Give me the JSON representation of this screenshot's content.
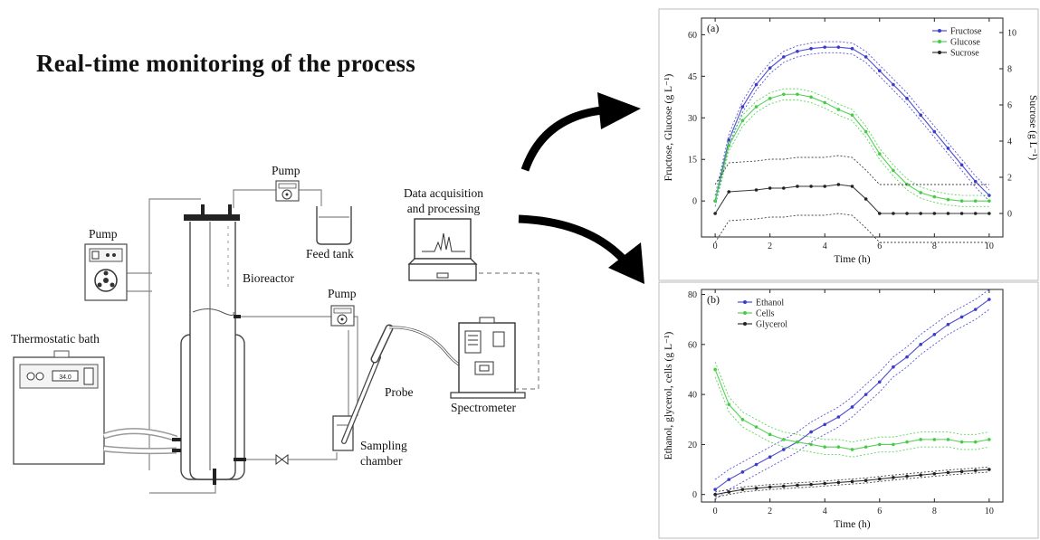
{
  "title": "Real-time monitoring of the process",
  "labels": {
    "pump_left": "Pump",
    "pump_top": "Pump",
    "pump_mid": "Pump",
    "feed_tank": "Feed tank",
    "bioreactor": "Bioreactor",
    "thermostatic_bath": "Thermostatic bath",
    "data_acq_line1": "Data acquisition",
    "data_acq_line2": "and processing",
    "probe": "Probe",
    "spectrometer": "Spectrometer",
    "sampling_line1": "Sampling",
    "sampling_line2": "chamber",
    "bath_display": "34.0"
  },
  "colors": {
    "fructose": "#3a3acc",
    "glucose": "#44cc44",
    "sucrose": "#222222",
    "ethanol": "#3a3acc",
    "cells": "#44cc44",
    "glycerol": "#222222"
  },
  "chart_data": [
    {
      "type": "line",
      "panel": "(a)",
      "xlabel": "Time (h)",
      "ylabel": "Fructose, Glucose (g L⁻¹)",
      "y2label": "Sucrose (g L⁻¹)",
      "xlim": [
        -0.5,
        10.5
      ],
      "ylim": [
        -13,
        66
      ],
      "y2lim": [
        -1.3,
        10.8
      ],
      "xticks": [
        0,
        2,
        4,
        6,
        8,
        10
      ],
      "yticks": [
        0,
        15,
        30,
        45,
        60
      ],
      "y2ticks": [
        0,
        2,
        4,
        6,
        8,
        10
      ],
      "legend_position": "top-right",
      "series": [
        {
          "name": "Fructose",
          "axis": "left",
          "x": [
            0,
            0.5,
            1,
            1.5,
            2,
            2.5,
            3,
            3.5,
            4,
            4.5,
            5,
            5.5,
            6,
            6.5,
            7,
            7.5,
            8,
            8.5,
            9,
            9.5,
            10
          ],
          "values": [
            0,
            22,
            34,
            42,
            48,
            52,
            54,
            55,
            55.5,
            55.5,
            55,
            52,
            47,
            42,
            37,
            31,
            25,
            19,
            13,
            7,
            2
          ],
          "band": 2.0
        },
        {
          "name": "Glucose",
          "axis": "left",
          "x": [
            0,
            0.5,
            1,
            1.5,
            2,
            2.5,
            3,
            3.5,
            4,
            4.5,
            5,
            5.5,
            6,
            6.5,
            7,
            7.5,
            8,
            8.5,
            9,
            9.5,
            10
          ],
          "values": [
            0,
            20,
            29,
            34,
            37,
            38.5,
            38.5,
            37.5,
            35.5,
            33,
            31,
            25,
            17,
            11,
            6,
            3,
            1.5,
            0.5,
            0,
            0,
            0
          ],
          "band": 2.0
        },
        {
          "name": "Sucrose",
          "axis": "right",
          "x": [
            0,
            0.5,
            1.5,
            2,
            2.5,
            3,
            3.5,
            4,
            4.5,
            5,
            5.5,
            6,
            6.5,
            7,
            7.5,
            8,
            8.5,
            9,
            9.5,
            10
          ],
          "values": [
            0,
            1.2,
            1.3,
            1.4,
            1.4,
            1.5,
            1.5,
            1.5,
            1.6,
            1.5,
            0.8,
            0,
            0,
            0,
            0,
            0,
            0,
            0,
            0,
            0
          ],
          "band": 1.6
        }
      ]
    },
    {
      "type": "line",
      "panel": "(b)",
      "xlabel": "Time (h)",
      "ylabel": "Ethanol, glycerol, cells (g L⁻¹)",
      "xlim": [
        -0.5,
        10.5
      ],
      "ylim": [
        -3,
        82
      ],
      "xticks": [
        0,
        2,
        4,
        6,
        8,
        10
      ],
      "yticks": [
        0,
        20,
        40,
        60,
        80
      ],
      "legend_position": "top-left",
      "series": [
        {
          "name": "Ethanol",
          "x": [
            0,
            0.5,
            1,
            1.5,
            2,
            2.5,
            3,
            3.5,
            4,
            4.5,
            5,
            5.5,
            6,
            6.5,
            7,
            7.5,
            8,
            8.5,
            9,
            9.5,
            10
          ],
          "values": [
            2,
            6,
            9,
            12,
            15,
            18,
            21,
            25,
            28,
            31,
            35,
            40,
            45,
            51,
            55,
            60,
            64,
            68,
            71,
            74,
            78
          ],
          "band": 4.0
        },
        {
          "name": "Cells",
          "x": [
            0,
            0.5,
            1,
            1.5,
            2,
            2.5,
            3,
            3.5,
            4,
            4.5,
            5,
            5.5,
            6,
            6.5,
            7,
            7.5,
            8,
            8.5,
            9,
            9.5,
            10
          ],
          "values": [
            50,
            36,
            30,
            27,
            24,
            22,
            21,
            20,
            19,
            19,
            18,
            19,
            20,
            20,
            21,
            22,
            22,
            22,
            21,
            21,
            22
          ],
          "band": 3.0
        },
        {
          "name": "Glycerol",
          "x": [
            0,
            0.5,
            1,
            1.5,
            2,
            2.5,
            3,
            3.5,
            4,
            4.5,
            5,
            5.5,
            6,
            6.5,
            7,
            7.5,
            8,
            8.5,
            9,
            9.5,
            10
          ],
          "values": [
            0,
            1,
            2,
            2.5,
            3,
            3.3,
            3.7,
            4,
            4.4,
            4.8,
            5.2,
            5.6,
            6.2,
            6.8,
            7.3,
            7.8,
            8.3,
            8.8,
            9.2,
            9.6,
            10
          ],
          "band": 1.0
        }
      ]
    }
  ]
}
